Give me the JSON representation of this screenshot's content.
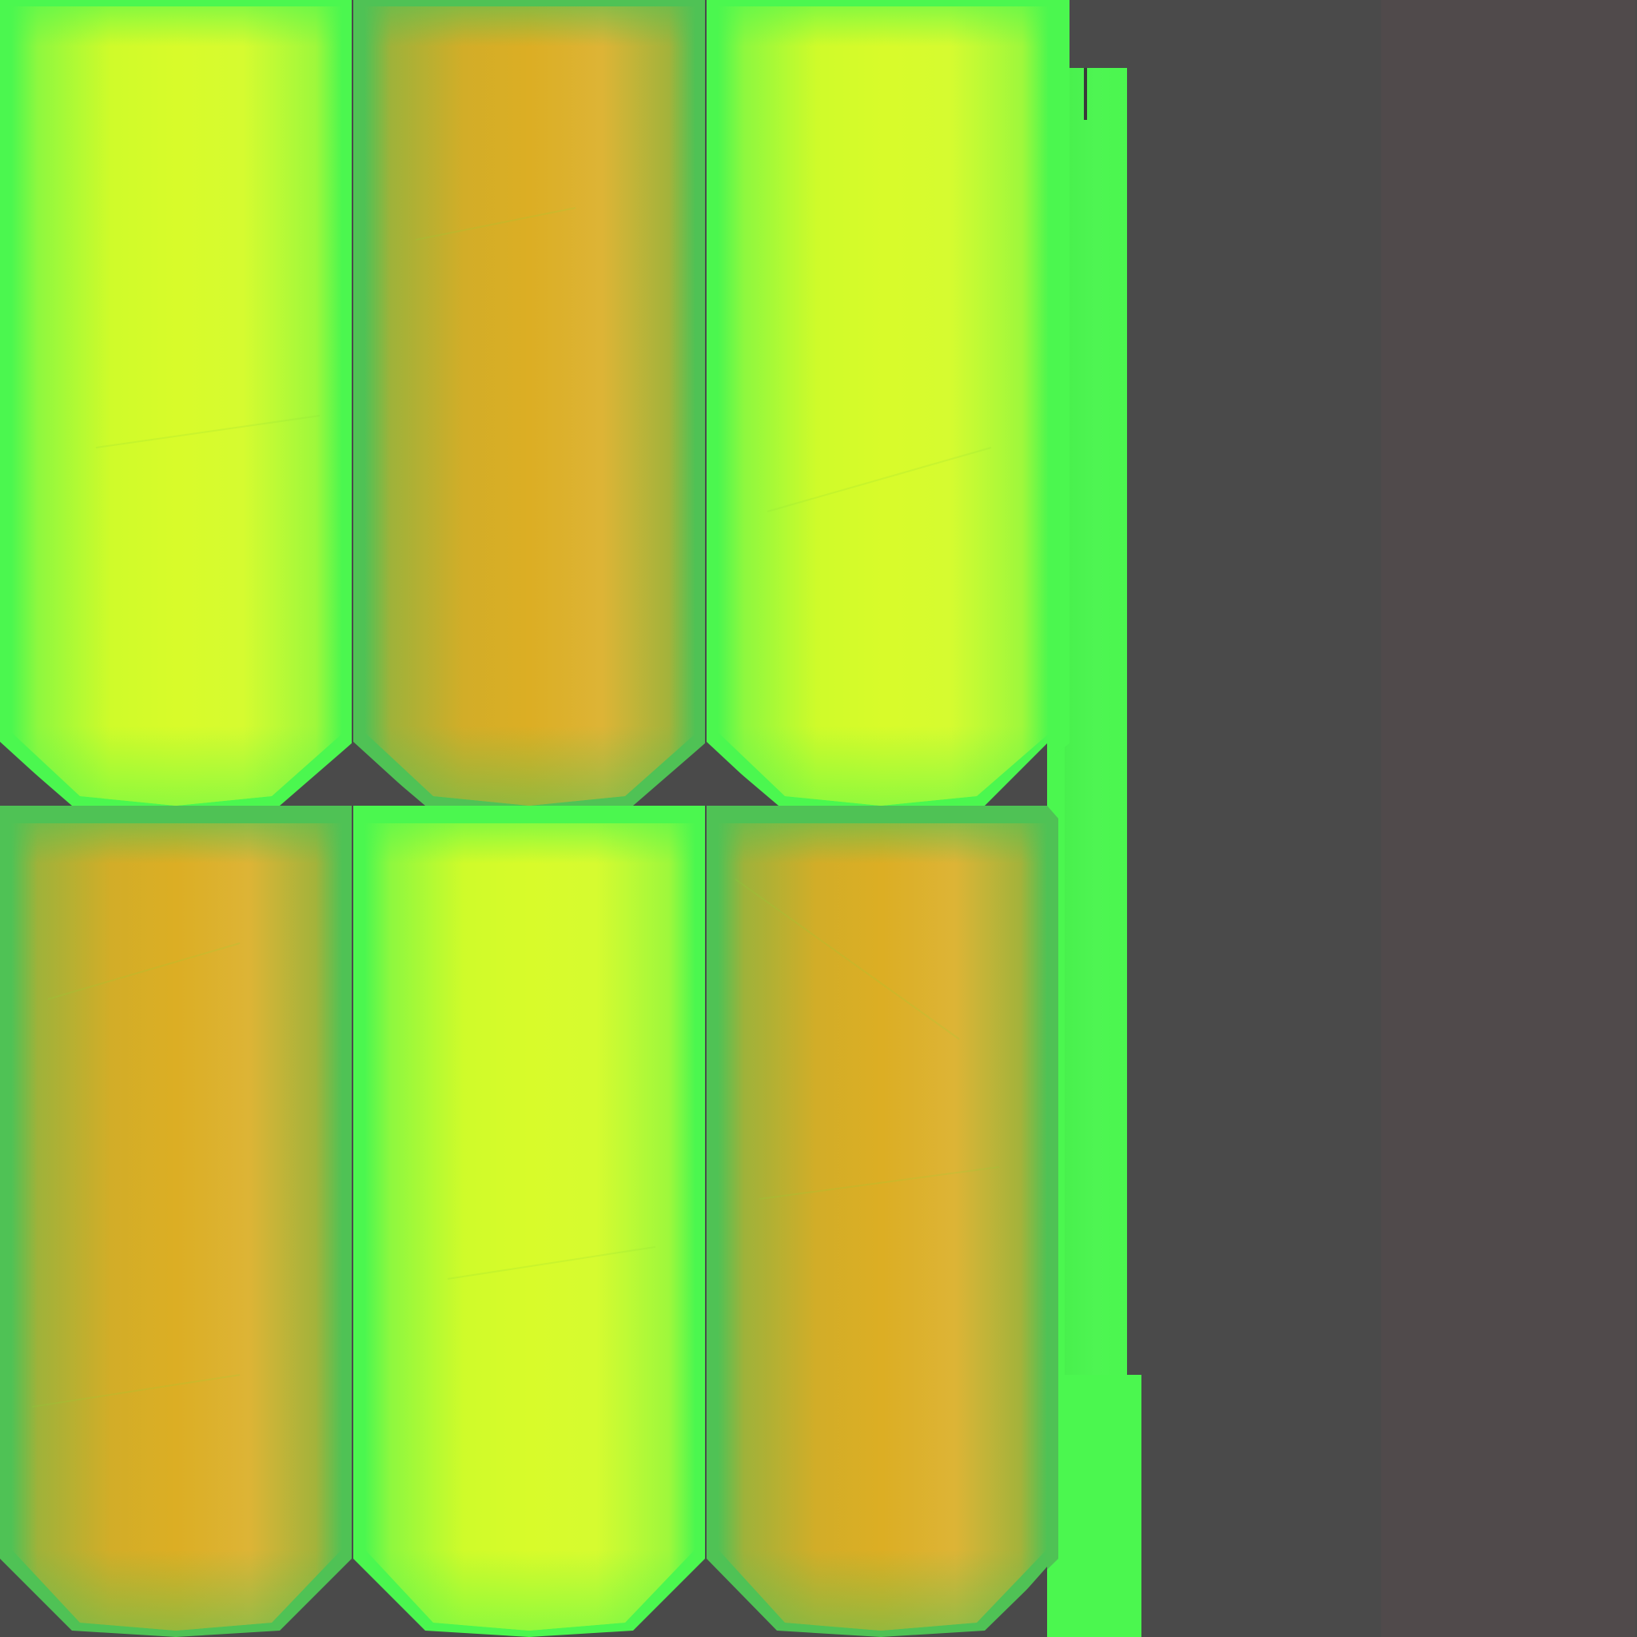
{
  "texture": {
    "background_color": "#4a4a4a",
    "right_band_color": "#504a4b",
    "green_rim_color": "#4bf74f",
    "dark_rim_color": "#4fc255",
    "tiles": [
      {
        "id": "tile-row1-col1",
        "variant": "lime",
        "row": 1,
        "col": 1
      },
      {
        "id": "tile-row1-col2",
        "variant": "amber",
        "row": 1,
        "col": 2
      },
      {
        "id": "tile-row1-col3",
        "variant": "lime",
        "row": 1,
        "col": 3
      },
      {
        "id": "tile-row2-col1",
        "variant": "amber",
        "row": 2,
        "col": 1
      },
      {
        "id": "tile-row2-col2",
        "variant": "lime",
        "row": 2,
        "col": 2
      },
      {
        "id": "tile-row2-col3",
        "variant": "amber",
        "row": 2,
        "col": 3
      }
    ],
    "variants": {
      "lime": {
        "core": "#d8fb2a",
        "mid": "#a8f83c",
        "rim": "#4bf74f"
      },
      "amber": {
        "core": "#dcae24",
        "mid": "#c9b33a",
        "rim": "#4fc255"
      }
    }
  }
}
